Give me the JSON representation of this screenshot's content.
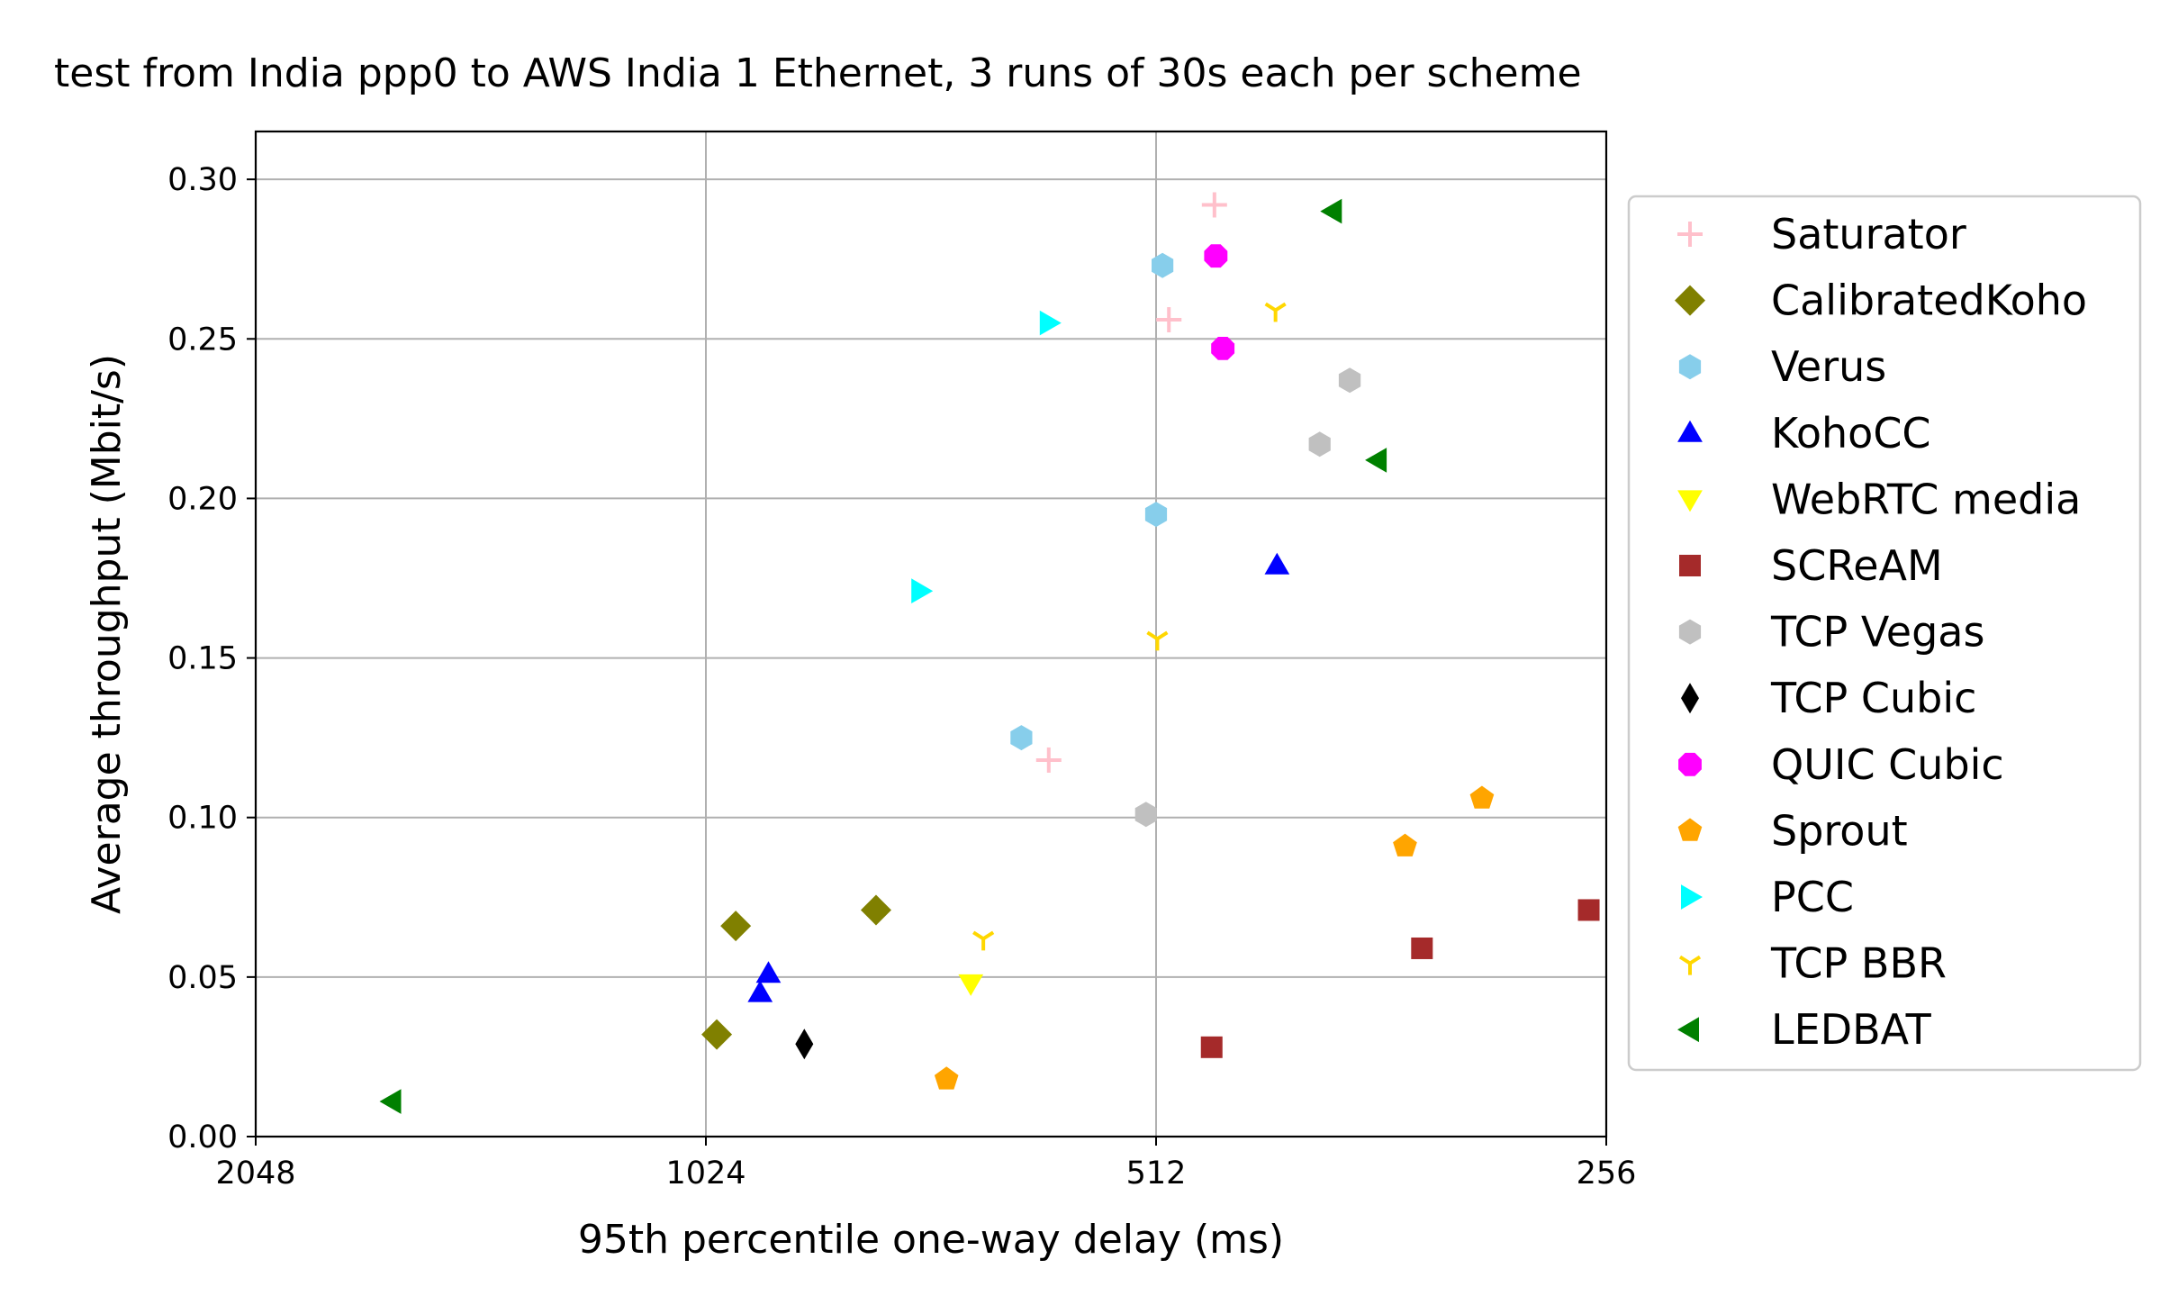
{
  "chart_data": {
    "type": "scatter",
    "title": "test from India ppp0 to AWS India 1 Ethernet, 3 runs of 30s each per scheme",
    "xlabel": "95th percentile one-way delay (ms)",
    "ylabel": "Average throughput (Mbit/s)",
    "x_scale": "log2",
    "x_inverted": true,
    "xlim": [
      2048,
      256
    ],
    "ylim": [
      0,
      0.315
    ],
    "x_ticks": [
      2048,
      1024,
      512,
      256
    ],
    "x_tick_labels": [
      "2048",
      "1024",
      "512",
      "256"
    ],
    "y_ticks": [
      0,
      0.05,
      0.1,
      0.15,
      0.2,
      0.25,
      0.3
    ],
    "y_tick_labels": [
      "0.00",
      "0.05",
      "0.10",
      "0.15",
      "0.20",
      "0.25",
      "0.30"
    ],
    "grid": true,
    "legend_position": "outside-right",
    "series": [
      {
        "name": "Saturator",
        "marker": "plus",
        "color": "#ffc0cb",
        "points": [
          [
            468,
            0.292
          ],
          [
            502,
            0.256
          ],
          [
            604,
            0.118
          ]
        ]
      },
      {
        "name": "CalibratedKoho",
        "marker": "diamond",
        "color": "#808000",
        "points": [
          [
            978,
            0.066
          ],
          [
            788,
            0.071
          ],
          [
            1007,
            0.032
          ]
        ]
      },
      {
        "name": "Verus",
        "marker": "hexagon",
        "color": "#87ceeb",
        "points": [
          [
            507,
            0.273
          ],
          [
            512,
            0.195
          ],
          [
            630,
            0.125
          ]
        ]
      },
      {
        "name": "KohoCC",
        "marker": "triangle-up",
        "color": "#0000ff",
        "points": [
          [
            425,
            0.179
          ],
          [
            930,
            0.051
          ],
          [
            942,
            0.045
          ]
        ]
      },
      {
        "name": "WebRTC media",
        "marker": "triangle-down",
        "color": "#ffff00",
        "points": [
          [
            681,
            0.048
          ]
        ]
      },
      {
        "name": "SCReAM",
        "marker": "square",
        "color": "#a52a2a",
        "points": [
          [
            263,
            0.071
          ],
          [
            340,
            0.059
          ],
          [
            470,
            0.028
          ]
        ]
      },
      {
        "name": "TCP Vegas",
        "marker": "hexagon",
        "color": "#c0c0c0",
        "points": [
          [
            380,
            0.237
          ],
          [
            398,
            0.217
          ],
          [
            520,
            0.101
          ]
        ]
      },
      {
        "name": "TCP Cubic",
        "marker": "thin-diamond",
        "color": "#000000",
        "points": [
          [
            880,
            0.029
          ]
        ]
      },
      {
        "name": "QUIC Cubic",
        "marker": "octagon",
        "color": "#ff00ff",
        "points": [
          [
            467,
            0.276
          ],
          [
            462,
            0.247
          ]
        ]
      },
      {
        "name": "Sprout",
        "marker": "pentagon",
        "color": "#ffa500",
        "points": [
          [
            310,
            0.106
          ],
          [
            349,
            0.091
          ],
          [
            707,
            0.018
          ]
        ]
      },
      {
        "name": "PCC",
        "marker": "triangle-right",
        "color": "#00ffff",
        "points": [
          [
            604,
            0.255
          ],
          [
            736,
            0.171
          ]
        ]
      },
      {
        "name": "TCP BBR",
        "marker": "tri-down",
        "color": "#ffd700",
        "points": [
          [
            426,
            0.259
          ],
          [
            511,
            0.156
          ],
          [
            668,
            0.062
          ]
        ]
      },
      {
        "name": "LEDBAT",
        "marker": "triangle-left",
        "color": "#008000",
        "points": [
          [
            390,
            0.29
          ],
          [
            364,
            0.212
          ],
          [
            1660,
            0.011
          ]
        ]
      }
    ]
  }
}
